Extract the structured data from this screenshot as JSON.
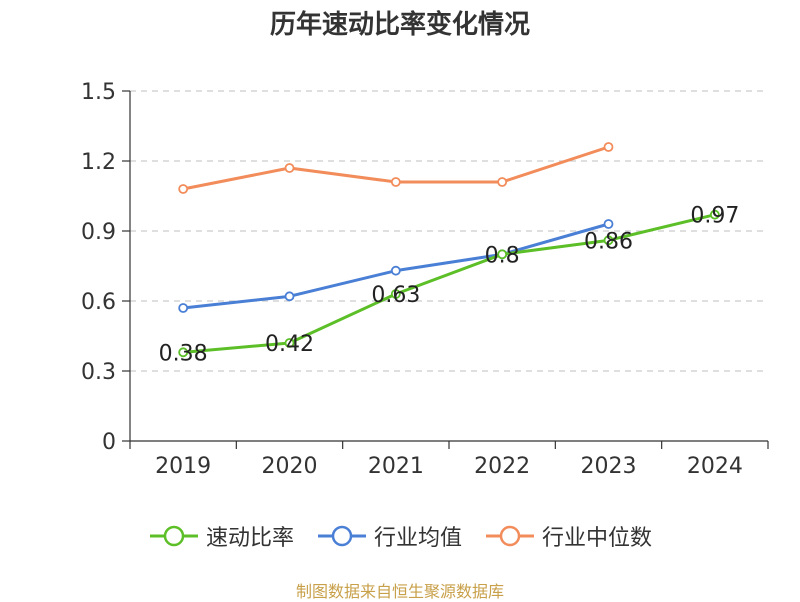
{
  "chart_data": {
    "type": "line",
    "title": "历年速动比率变化情况",
    "categories": [
      "2019",
      "2020",
      "2021",
      "2022",
      "2023",
      "2024"
    ],
    "ylim": [
      0,
      1.5
    ],
    "yticks": [
      "0",
      "0.3",
      "0.6",
      "0.9",
      "1.2",
      "1.5"
    ],
    "grid": true,
    "legend_position": "bottom",
    "series": [
      {
        "name": "速动比率",
        "color": "#5cbf27",
        "values": [
          0.38,
          0.42,
          0.63,
          0.8,
          0.86,
          0.97
        ],
        "labels": [
          "0.38",
          "0.42",
          "0.63",
          "0.8",
          "0.86",
          "0.97"
        ]
      },
      {
        "name": "行业均值",
        "color": "#4a7fd6",
        "values": [
          0.57,
          0.62,
          0.73,
          0.8,
          0.93,
          null
        ]
      },
      {
        "name": "行业中位数",
        "color": "#f28c5a",
        "values": [
          1.08,
          1.17,
          1.11,
          1.11,
          1.26,
          null
        ]
      }
    ]
  },
  "footer": {
    "source": "制图数据来自恒生聚源数据库"
  }
}
